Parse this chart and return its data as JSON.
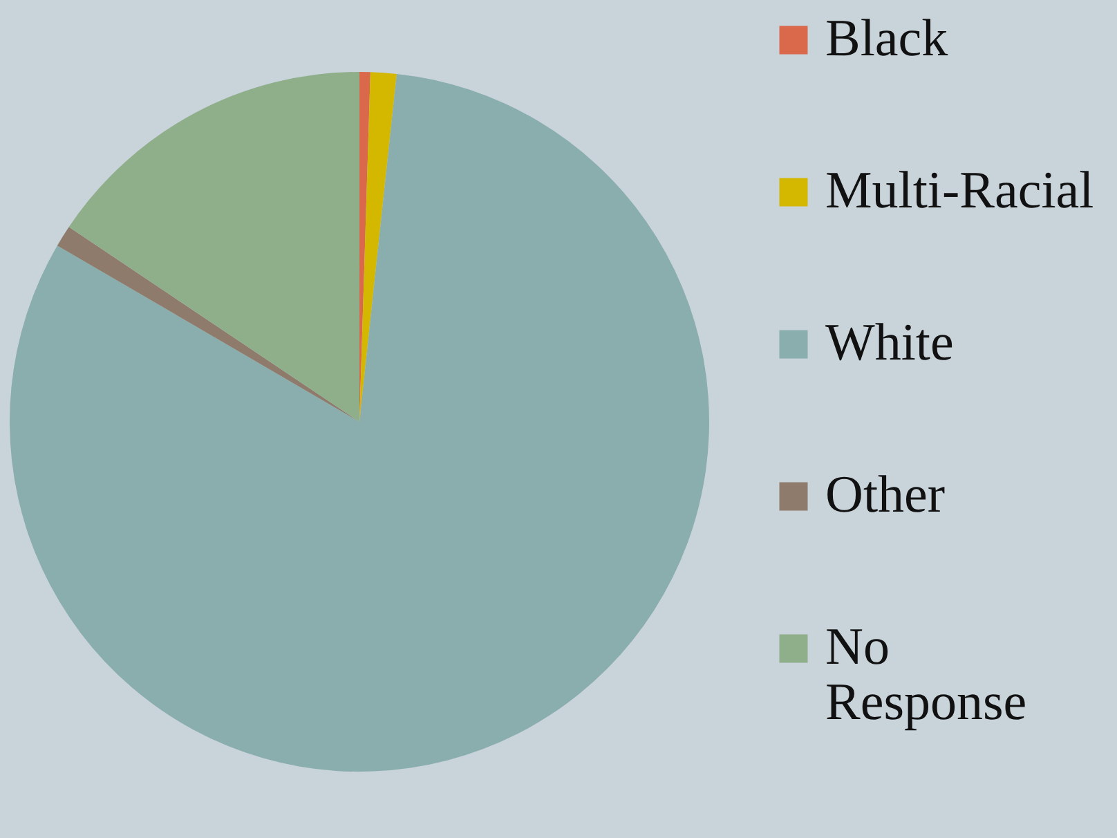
{
  "chart_data": {
    "type": "pie",
    "categories": [
      "Black",
      "Multi-Racial",
      "White",
      "Other",
      "No Response"
    ],
    "values": [
      0.5,
      1.2,
      81.7,
      1,
      15.6
    ],
    "colors": [
      "#d9694a",
      "#d4b800",
      "#8aadad",
      "#8e7b6b",
      "#8fae8a"
    ],
    "legend": "right"
  }
}
